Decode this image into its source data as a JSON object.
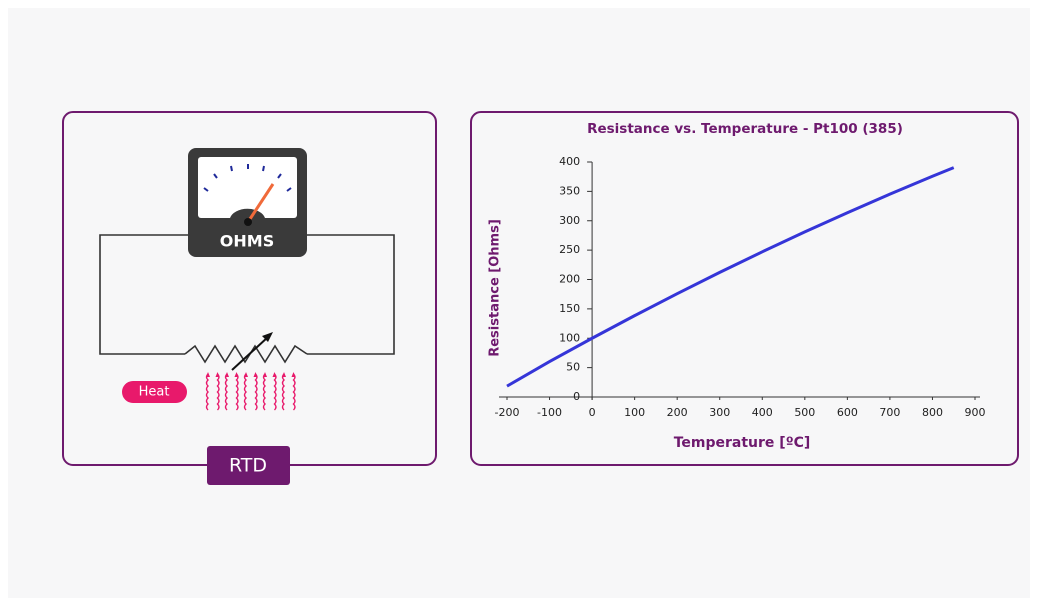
{
  "diagram": {
    "meter_label": "OHMS",
    "heat_label": "Heat",
    "caption": "RTD"
  },
  "chart_data": {
    "type": "line",
    "title": "Resistance  vs. Temperature - Pt100 (385)",
    "xlabel": "Temperature [ºC]",
    "ylabel": "Resistance [Ohms]",
    "x": [
      -200,
      -100,
      0,
      100,
      200,
      300,
      400,
      500,
      600,
      700,
      800,
      850
    ],
    "series": [
      {
        "color": "#3535d8",
        "values": [
          18.5,
          60.3,
          100,
          138.5,
          175.9,
          212.1,
          247.1,
          281,
          313.7,
          345.3,
          375.7,
          390.5
        ]
      }
    ],
    "xlim": [
      -200,
      900
    ],
    "xticks": [
      -200,
      -100,
      0,
      100,
      200,
      300,
      400,
      500,
      600,
      700,
      800,
      900
    ],
    "ylim": [
      0,
      400
    ],
    "yticks": [
      0,
      50,
      100,
      150,
      200,
      250,
      300,
      350,
      400
    ]
  }
}
